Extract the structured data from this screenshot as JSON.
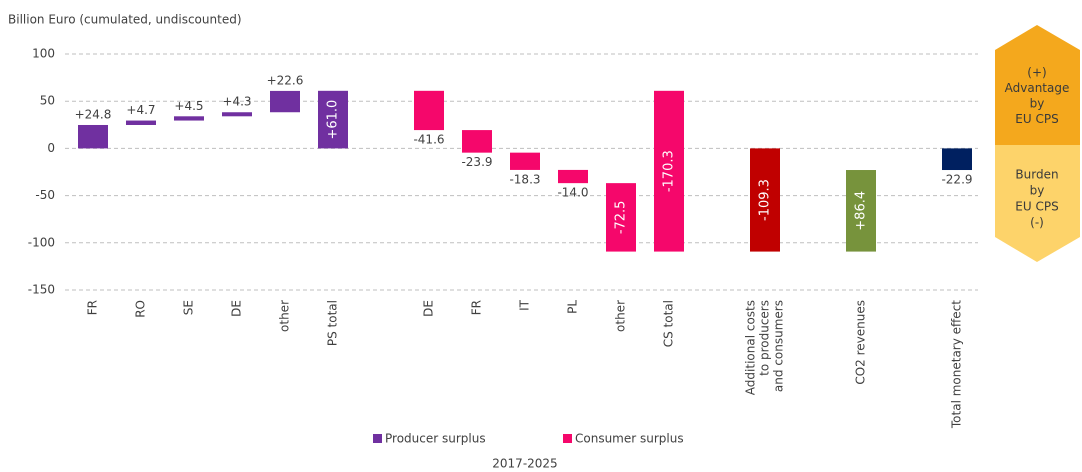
{
  "chart_data": {
    "type": "waterfall",
    "ylabel": "Billion Euro (cumulated, undiscounted)",
    "xlabel": "2017-2025",
    "categories": [
      "FR",
      "RO",
      "SE",
      "DE",
      "other",
      "PS total",
      null,
      "DE",
      "FR",
      "IT",
      "PL",
      "other",
      "CS total",
      null,
      [
        "Additional costs",
        "to producers",
        "and consumers"
      ],
      null,
      "CO2 revenues",
      null,
      "Total monetary effect"
    ],
    "values": [
      24.8,
      4.7,
      4.5,
      4.3,
      22.6,
      61.0,
      null,
      -41.6,
      -23.9,
      -18.3,
      -14.0,
      -72.5,
      -170.3,
      null,
      -109.3,
      null,
      86.4,
      null,
      -22.9
    ],
    "value_labels": [
      "+24.8",
      "+4.7",
      "+4.5",
      "+4.3",
      "+22.6",
      "+61.0",
      null,
      "-41.6",
      "-23.9",
      "-18.3",
      "-14.0",
      "-72.5",
      "-170.3",
      null,
      "-109.3",
      null,
      "+86.4",
      null,
      "-22.9"
    ],
    "measures": [
      "relative",
      "relative",
      "relative",
      "relative",
      "relative",
      "total",
      null,
      "relative",
      "relative",
      "relative",
      "relative",
      "relative",
      "sum",
      null,
      "total",
      null,
      "relative",
      null,
      "total"
    ],
    "colors": [
      "#7030a0",
      "#7030a0",
      "#7030a0",
      "#7030a0",
      "#7030a0",
      "#7030a0",
      null,
      "#f5076b",
      "#f5076b",
      "#f5076b",
      "#f5076b",
      "#f5076b",
      "#f5076b",
      null,
      "#c00000",
      null,
      "#77933c",
      null,
      "#002060"
    ],
    "legend": [
      {
        "name": "Producer surplus",
        "color": "#7030a0"
      },
      {
        "name": "Consumer surplus",
        "color": "#f5076b"
      }
    ],
    "ylim": [
      -150,
      100
    ],
    "yticks": [
      -150,
      -100,
      -50,
      0,
      50,
      100
    ],
    "grid": true
  },
  "panel": {
    "advantage": [
      "(+)",
      "Advantage",
      "by",
      "EU CPS"
    ],
    "burden": [
      "Burden",
      "by",
      "EU CPS",
      "(-)"
    ]
  }
}
